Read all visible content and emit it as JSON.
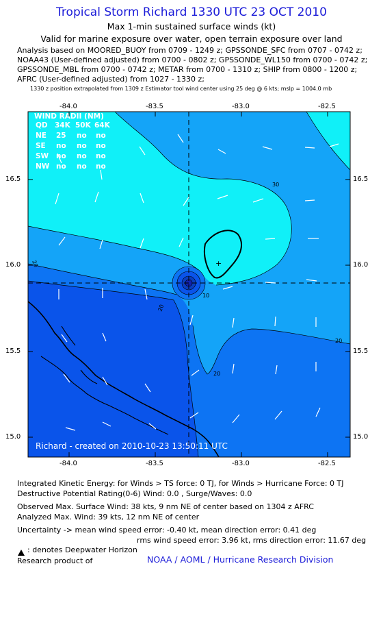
{
  "header": {
    "title": "Tropical Storm Richard 1330 UTC 23 OCT 2010",
    "subtitle_1": "Max 1-min sustained surface winds (kt)",
    "subtitle_2": "Valid for marine exposure over water, open terrain exposure over land"
  },
  "analysis_lines": [
    "Analysis based on MOORED_BUOY from 0709 - 1249 z; GPSSONDE_SFC from 0707 - 0742 z;",
    "NOAA43 (User-defined adjusted) from 0700 - 0802 z; GPSSONDE_WL150 from 0700 - 0742 z;",
    "GPSSONDE_MBL from 0700 - 0742 z; METAR from 0700 - 1310 z; SHIP from 0800 - 1200 z;",
    "AFRC (User-defined adjusted) from 1027 - 1330 z;"
  ],
  "position_note": "1330 z position extrapolated from 1309 z Estimator tool wind center using 25 deg @ 6 kts; mslp = 1004.0 mb",
  "map": {
    "lon_ticks": [
      "-84.0",
      "-83.5",
      "-83.0",
      "-82.5"
    ],
    "lat_ticks": [
      "16.5",
      "16.0",
      "15.5",
      "15.0"
    ],
    "contour_labels": [
      "30",
      "20",
      "20",
      "20",
      "20",
      "10"
    ],
    "center_lon": -83.25,
    "center_lat": 15.9,
    "created_label": "Richard - created on 2010-10-23 13:50:11 UTC",
    "colors": {
      "deep": "#0a54ea",
      "lvl10": "#0d74f3",
      "lvl20": "#14a4f8",
      "lvl30": "#10f0f8",
      "core": "#1022b0"
    },
    "wind_radii": {
      "title": "WIND RADII (NM)",
      "header": [
        "QD",
        "34K",
        "50K",
        "64K"
      ],
      "rows": [
        [
          "NE",
          "25",
          "no",
          "no"
        ],
        [
          "SE",
          "no",
          "no",
          "no"
        ],
        [
          "SW",
          "no",
          "no",
          "no"
        ],
        [
          "NW",
          "no",
          "no",
          "no"
        ]
      ]
    }
  },
  "stats": {
    "ike": "Integrated Kinetic Energy:  for Winds > TS force: 0 TJ,  for Winds > Hurricane Force: 0 TJ",
    "dpr": "Destructive Potential Rating(0-6)   Wind: 0.0 , Surge/Waves: 0.0",
    "observed_max": "Observed Max. Surface Wind: 38 kts, 9 nm NE of center based on 1304 z AFRC",
    "analyzed_max": "Analyzed Max. Wind: 39 kts, 12 nm NE of center",
    "uncertainty_1": "Uncertainty -> mean wind speed error:  -0.40 kt,   mean direction error: 0.41 deg",
    "uncertainty_2": "rms wind speed error: 3.96 kt,   rms direction error: 11.67 deg",
    "legend_text": ": denotes Deepwater Horizon",
    "research_product": "Research product of",
    "credit": "NOAA / AOML / Hurricane Research Division"
  }
}
